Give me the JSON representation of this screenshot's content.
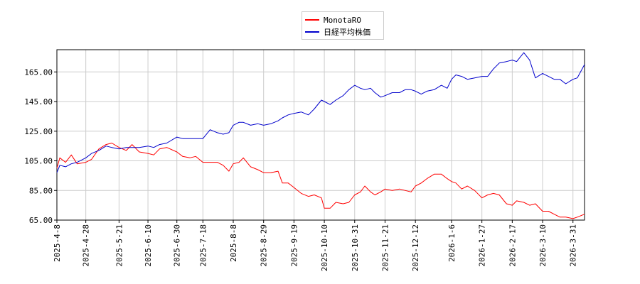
{
  "chart_data": {
    "type": "line",
    "xlabel": "",
    "ylabel": "",
    "ylim": [
      65,
      180
    ],
    "yticks": [
      65,
      85,
      105,
      125,
      145,
      165
    ],
    "ytick_labels": [
      "65.00",
      "85.00",
      "105.00",
      "125.00",
      "145.00",
      "165.00"
    ],
    "x_range": [
      "2025-04-08",
      "2026-04-08"
    ],
    "xtick_labels": [
      "2025-4-8",
      "2025-4-28",
      "2025-5-21",
      "2025-6-10",
      "2025-6-30",
      "2025-7-18",
      "2025-8-8",
      "2025-8-29",
      "2025-9-19",
      "2025-10-10",
      "2025-10-31",
      "2025-11-21",
      "2025-12-12",
      "2026-1-6",
      "2026-1-27",
      "2026-2-17",
      "2026-3-10",
      "2026-3-31"
    ],
    "xtick_dates": [
      "2025-04-08",
      "2025-04-28",
      "2025-05-21",
      "2025-06-10",
      "2025-06-30",
      "2025-07-18",
      "2025-08-08",
      "2025-08-29",
      "2025-09-19",
      "2025-10-10",
      "2025-10-31",
      "2025-11-21",
      "2025-12-12",
      "2026-01-06",
      "2026-01-27",
      "2026-02-17",
      "2026-03-10",
      "2026-03-31"
    ],
    "grid": true,
    "legend_position": "top-center",
    "series": [
      {
        "name": "MonotaRO",
        "color": "#ff0000",
        "points": [
          [
            "2025-04-08",
            100
          ],
          [
            "2025-04-10",
            107
          ],
          [
            "2025-04-14",
            104
          ],
          [
            "2025-04-18",
            109
          ],
          [
            "2025-04-22",
            103
          ],
          [
            "2025-04-28",
            104
          ],
          [
            "2025-05-02",
            106
          ],
          [
            "2025-05-07",
            113
          ],
          [
            "2025-05-12",
            116
          ],
          [
            "2025-05-16",
            117
          ],
          [
            "2025-05-21",
            114
          ],
          [
            "2025-05-26",
            112
          ],
          [
            "2025-05-30",
            116
          ],
          [
            "2025-06-04",
            111
          ],
          [
            "2025-06-10",
            110
          ],
          [
            "2025-06-14",
            109
          ],
          [
            "2025-06-18",
            113
          ],
          [
            "2025-06-23",
            114
          ],
          [
            "2025-06-30",
            111
          ],
          [
            "2025-07-04",
            108
          ],
          [
            "2025-07-09",
            107
          ],
          [
            "2025-07-13",
            108
          ],
          [
            "2025-07-18",
            104
          ],
          [
            "2025-07-23",
            104
          ],
          [
            "2025-07-28",
            104
          ],
          [
            "2025-08-01",
            102
          ],
          [
            "2025-08-05",
            98
          ],
          [
            "2025-08-08",
            103
          ],
          [
            "2025-08-12",
            104
          ],
          [
            "2025-08-15",
            107
          ],
          [
            "2025-08-20",
            101
          ],
          [
            "2025-08-25",
            99
          ],
          [
            "2025-08-29",
            97
          ],
          [
            "2025-09-03",
            97
          ],
          [
            "2025-09-08",
            98
          ],
          [
            "2025-09-11",
            90
          ],
          [
            "2025-09-15",
            90
          ],
          [
            "2025-09-19",
            87
          ],
          [
            "2025-09-24",
            83
          ],
          [
            "2025-09-29",
            81
          ],
          [
            "2025-10-03",
            82
          ],
          [
            "2025-10-08",
            80
          ],
          [
            "2025-10-10",
            73
          ],
          [
            "2025-10-14",
            73
          ],
          [
            "2025-10-18",
            77
          ],
          [
            "2025-10-23",
            76
          ],
          [
            "2025-10-27",
            77
          ],
          [
            "2025-10-31",
            82
          ],
          [
            "2025-11-04",
            84
          ],
          [
            "2025-11-07",
            88
          ],
          [
            "2025-11-11",
            84
          ],
          [
            "2025-11-14",
            82
          ],
          [
            "2025-11-18",
            84
          ],
          [
            "2025-11-21",
            86
          ],
          [
            "2025-11-26",
            85
          ],
          [
            "2025-12-01",
            86
          ],
          [
            "2025-12-05",
            85
          ],
          [
            "2025-12-09",
            84
          ],
          [
            "2025-12-12",
            88
          ],
          [
            "2025-12-16",
            90
          ],
          [
            "2025-12-20",
            93
          ],
          [
            "2025-12-25",
            96
          ],
          [
            "2025-12-30",
            96
          ],
          [
            "2026-01-03",
            93
          ],
          [
            "2026-01-06",
            91
          ],
          [
            "2026-01-09",
            90
          ],
          [
            "2026-01-13",
            86
          ],
          [
            "2026-01-17",
            88
          ],
          [
            "2026-01-22",
            85
          ],
          [
            "2026-01-27",
            80
          ],
          [
            "2026-01-31",
            82
          ],
          [
            "2026-02-04",
            83
          ],
          [
            "2026-02-08",
            82
          ],
          [
            "2026-02-13",
            76
          ],
          [
            "2026-02-17",
            75
          ],
          [
            "2026-02-20",
            78
          ],
          [
            "2026-02-25",
            77
          ],
          [
            "2026-03-01",
            75
          ],
          [
            "2026-03-05",
            76
          ],
          [
            "2026-03-10",
            71
          ],
          [
            "2026-03-14",
            71
          ],
          [
            "2026-03-18",
            69
          ],
          [
            "2026-03-22",
            67
          ],
          [
            "2026-03-26",
            67
          ],
          [
            "2026-03-31",
            66
          ],
          [
            "2026-04-03",
            67
          ],
          [
            "2026-04-08",
            69
          ]
        ]
      },
      {
        "name": "日経平均株価",
        "color": "#0000cc",
        "points": [
          [
            "2025-04-08",
            97
          ],
          [
            "2025-04-10",
            102
          ],
          [
            "2025-04-14",
            101
          ],
          [
            "2025-04-18",
            103
          ],
          [
            "2025-04-22",
            104
          ],
          [
            "2025-04-28",
            107
          ],
          [
            "2025-05-02",
            110
          ],
          [
            "2025-05-07",
            112
          ],
          [
            "2025-05-12",
            115
          ],
          [
            "2025-05-16",
            114
          ],
          [
            "2025-05-21",
            113
          ],
          [
            "2025-05-26",
            114
          ],
          [
            "2025-05-30",
            114
          ],
          [
            "2025-06-04",
            114
          ],
          [
            "2025-06-10",
            115
          ],
          [
            "2025-06-14",
            114
          ],
          [
            "2025-06-18",
            116
          ],
          [
            "2025-06-23",
            117
          ],
          [
            "2025-06-30",
            121
          ],
          [
            "2025-07-04",
            120
          ],
          [
            "2025-07-09",
            120
          ],
          [
            "2025-07-13",
            120
          ],
          [
            "2025-07-18",
            120
          ],
          [
            "2025-07-23",
            126
          ],
          [
            "2025-07-28",
            124
          ],
          [
            "2025-08-01",
            123
          ],
          [
            "2025-08-05",
            124
          ],
          [
            "2025-08-08",
            129
          ],
          [
            "2025-08-12",
            131
          ],
          [
            "2025-08-15",
            131
          ],
          [
            "2025-08-20",
            129
          ],
          [
            "2025-08-25",
            130
          ],
          [
            "2025-08-29",
            129
          ],
          [
            "2025-09-03",
            130
          ],
          [
            "2025-09-08",
            132
          ],
          [
            "2025-09-11",
            134
          ],
          [
            "2025-09-15",
            136
          ],
          [
            "2025-09-19",
            137
          ],
          [
            "2025-09-24",
            138
          ],
          [
            "2025-09-29",
            136
          ],
          [
            "2025-10-03",
            140
          ],
          [
            "2025-10-08",
            146
          ],
          [
            "2025-10-10",
            145
          ],
          [
            "2025-10-14",
            143
          ],
          [
            "2025-10-18",
            146
          ],
          [
            "2025-10-23",
            149
          ],
          [
            "2025-10-27",
            153
          ],
          [
            "2025-10-31",
            156
          ],
          [
            "2025-11-04",
            154
          ],
          [
            "2025-11-07",
            153
          ],
          [
            "2025-11-11",
            154
          ],
          [
            "2025-11-14",
            151
          ],
          [
            "2025-11-18",
            148
          ],
          [
            "2025-11-21",
            149
          ],
          [
            "2025-11-26",
            151
          ],
          [
            "2025-12-01",
            151
          ],
          [
            "2025-12-05",
            153
          ],
          [
            "2025-12-09",
            153
          ],
          [
            "2025-12-12",
            152
          ],
          [
            "2025-12-16",
            150
          ],
          [
            "2025-12-20",
            152
          ],
          [
            "2025-12-25",
            153
          ],
          [
            "2025-12-30",
            156
          ],
          [
            "2026-01-03",
            154
          ],
          [
            "2026-01-06",
            160
          ],
          [
            "2026-01-09",
            163
          ],
          [
            "2026-01-13",
            162
          ],
          [
            "2026-01-17",
            160
          ],
          [
            "2026-01-22",
            161
          ],
          [
            "2026-01-27",
            162
          ],
          [
            "2026-01-31",
            162
          ],
          [
            "2026-02-04",
            167
          ],
          [
            "2026-02-08",
            171
          ],
          [
            "2026-02-13",
            172
          ],
          [
            "2026-02-17",
            173
          ],
          [
            "2026-02-20",
            172
          ],
          [
            "2026-02-25",
            178
          ],
          [
            "2026-03-01",
            173
          ],
          [
            "2026-03-05",
            161
          ],
          [
            "2026-03-10",
            164
          ],
          [
            "2026-03-14",
            162
          ],
          [
            "2026-03-18",
            160
          ],
          [
            "2026-03-22",
            160
          ],
          [
            "2026-03-26",
            157
          ],
          [
            "2026-03-31",
            160
          ],
          [
            "2026-04-03",
            161
          ],
          [
            "2026-04-08",
            170
          ]
        ]
      }
    ]
  }
}
